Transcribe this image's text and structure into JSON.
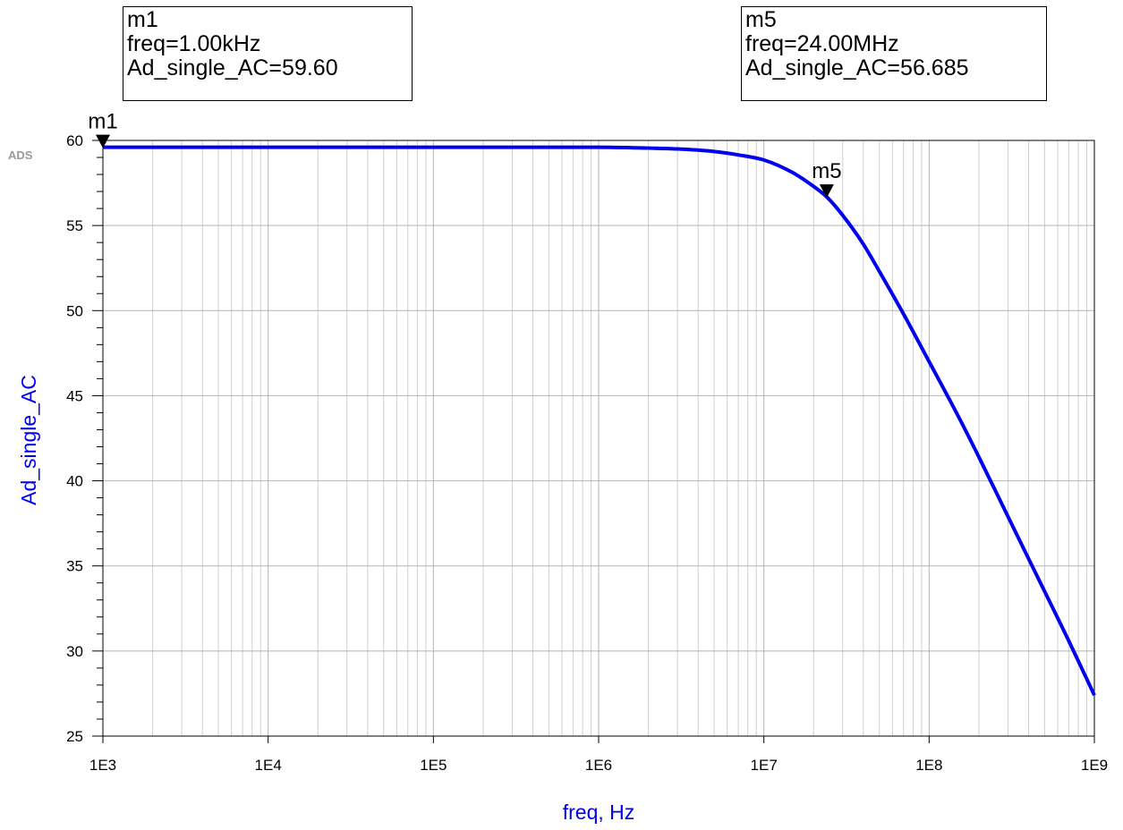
{
  "logo_text": "ADS",
  "markers": [
    {
      "id": "m1",
      "label": "m1",
      "lines": [
        "m1",
        "freq=1.00kHz",
        "Ad_single_AC=59.60"
      ],
      "x": 1000,
      "y": 59.6
    },
    {
      "id": "m5",
      "label": "m5",
      "lines": [
        "m5",
        "freq=24.00MHz",
        "Ad_single_AC=56.685"
      ],
      "x": 24000000,
      "y": 56.685
    }
  ],
  "chart_data": {
    "type": "line",
    "xscale": "log",
    "xlabel": "freq, Hz",
    "ylabel": "Ad_single_AC",
    "xlim": [
      1000,
      1000000000
    ],
    "ylim": [
      25,
      60
    ],
    "xticks": [
      1000,
      10000,
      100000,
      1000000,
      10000000,
      100000000,
      1000000000
    ],
    "xtick_labels": [
      "1E3",
      "1E4",
      "1E5",
      "1E6",
      "1E7",
      "1E8",
      "1E9"
    ],
    "yticks": [
      25,
      30,
      35,
      40,
      45,
      50,
      55,
      60
    ],
    "ytick_labels": [
      "25",
      "30",
      "35",
      "40",
      "45",
      "50",
      "55",
      "60"
    ],
    "grid": true,
    "series_color": "#0000ee",
    "series": [
      {
        "x": [
          1000,
          10000,
          100000,
          1000000,
          2000000,
          3000000,
          5000000,
          7000000,
          10000000,
          15000000,
          20000000,
          24000000,
          30000000,
          40000000,
          50000000,
          70000000,
          100000000,
          150000000,
          200000000,
          300000000,
          500000000,
          700000000,
          1000000000
        ],
        "y": [
          59.6,
          59.6,
          59.6,
          59.6,
          59.55,
          59.5,
          59.35,
          59.15,
          58.85,
          58.1,
          57.3,
          56.685,
          55.6,
          53.9,
          52.3,
          49.8,
          47.0,
          43.8,
          41.4,
          37.9,
          33.5,
          30.6,
          27.4
        ]
      }
    ]
  }
}
